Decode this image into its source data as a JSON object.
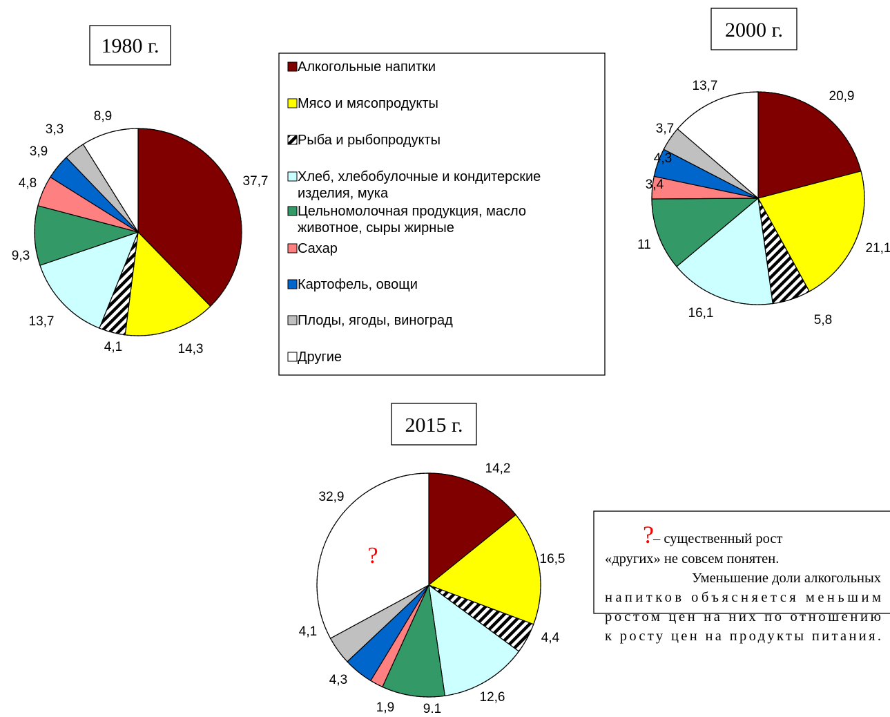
{
  "categories": [
    {
      "name": "Алкогольные напитки",
      "color": "#800000"
    },
    {
      "name": "Мясо и мясопродукты",
      "color": "#ffff00"
    },
    {
      "name": "Рыба и рыбопродукты",
      "color": "hatch"
    },
    {
      "name": "Хлеб, хлебобулочные и кондитерские изделия, мука",
      "color": "#ccffff"
    },
    {
      "name": "Цельномолочная продукция, масло животное, сыры жирные",
      "color": "#339966"
    },
    {
      "name": "Сахар",
      "color": "#ff8080"
    },
    {
      "name": "Картофель, овощи",
      "color": "#0066cc"
    },
    {
      "name": "Плоды, ягоды, виноград",
      "color": "#c0c0c0"
    },
    {
      "name": "Другие",
      "color": "#ffffff"
    }
  ],
  "legend": {
    "lines": [
      [
        "Алкогольные напитки"
      ],
      [
        "Мясо и мясопродукты"
      ],
      [
        "Рыба и рыбопродукты"
      ],
      [
        "Хлеб, хлебобулочные и кондитерские",
        "изделия, мука"
      ],
      [
        "Цельномолочная продукция, масло",
        "животное, сыры жирные"
      ],
      [
        "Сахар"
      ],
      [
        "Картофель, овощи"
      ],
      [
        "Плоды, ягоды, виноград"
      ],
      [
        "Другие"
      ]
    ]
  },
  "chart_data": [
    {
      "type": "pie",
      "title": "1980 г.",
      "values": [
        37.7,
        14.3,
        4.1,
        13.7,
        9.3,
        4.8,
        3.9,
        3.3,
        8.9
      ],
      "labels": [
        "37,7",
        "14,3",
        "4,1",
        "13,7",
        "9,3",
        "4,8",
        "3,9",
        "3,3",
        "8,9"
      ]
    },
    {
      "type": "pie",
      "title": "2000 г.",
      "values": [
        20.9,
        21.1,
        5.8,
        16.1,
        11,
        3.4,
        4.3,
        3.7,
        13.7
      ],
      "labels": [
        "20,9",
        "21,1",
        "5,8",
        "16,1",
        "11",
        "3,4",
        "4,3",
        "3,7",
        "13,7"
      ]
    },
    {
      "type": "pie",
      "title": "2015 г.",
      "values": [
        14.2,
        16.5,
        4.4,
        12.6,
        9.1,
        1.9,
        4.3,
        4.1,
        32.9
      ],
      "labels": [
        "14,2",
        "16,5",
        "4,4",
        "12,6",
        "9.1",
        "1,9",
        "4,3",
        "4,1",
        "32,9"
      ],
      "annotation": "?"
    }
  ],
  "note": {
    "qmark": "?",
    "line1": " – существенный рост",
    "line2": "«других» не совсем понятен.",
    "line3": "Уменьшение доли алкогольных",
    "line4": "напитков объясняется меньшим",
    "line5": "ростом цен на них по отношению",
    "line6": "к росту цен на продукты питания."
  }
}
